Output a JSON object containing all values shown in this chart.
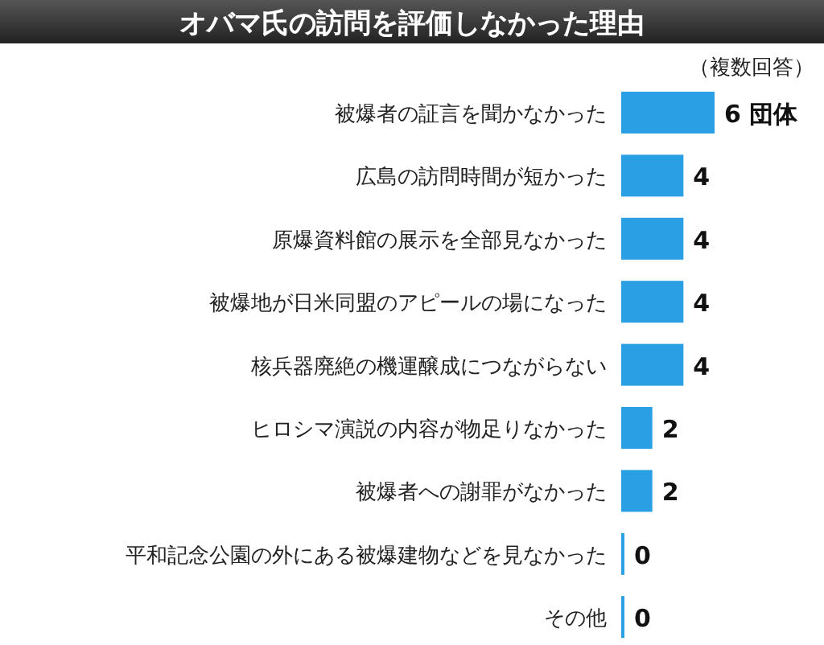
{
  "chart_data": {
    "type": "bar",
    "orientation": "horizontal",
    "title": "オバマ氏の訪問を評価しなかった理由",
    "subtitle": "（複数回答）",
    "categories": [
      "被爆者の証言を聞かなかった",
      "広島の訪問時間が短かった",
      "原爆資料館の展示を全部見なかった",
      "被爆地が日米同盟のアピールの場になった",
      "核兵器廃絶の機運醸成につながらない",
      "ヒロシマ演説の内容が物足りなかった",
      "被爆者への謝罪がなかった",
      "平和記念公園の外にある被爆建物などを見なかった",
      "その他"
    ],
    "values": [
      6,
      4,
      4,
      4,
      4,
      2,
      2,
      0,
      0
    ],
    "value_labels": [
      "6 団体",
      "4",
      "4",
      "4",
      "4",
      "2",
      "2",
      "0",
      "0"
    ],
    "color": "#2a9fe3"
  }
}
